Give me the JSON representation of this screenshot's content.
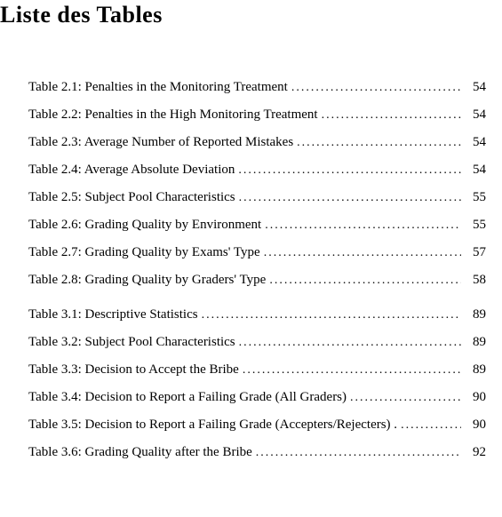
{
  "heading": "Liste des Tables",
  "entries": [
    {
      "num": "2.1",
      "title": "Penalties in the Monitoring Treatment",
      "page": "54",
      "group_gap": false
    },
    {
      "num": "2.2",
      "title": "Penalties in the High Monitoring Treatment",
      "page": "54",
      "group_gap": false
    },
    {
      "num": "2.3",
      "title": "Average Number of Reported Mistakes",
      "page": "54",
      "group_gap": false
    },
    {
      "num": "2.4",
      "title": "Average Absolute Deviation",
      "page": "54",
      "group_gap": false
    },
    {
      "num": "2.5",
      "title": "Subject Pool Characteristics",
      "page": "55",
      "group_gap": false
    },
    {
      "num": "2.6",
      "title": "Grading Quality by Environment",
      "page": "55",
      "group_gap": false
    },
    {
      "num": "2.7",
      "title": "Grading Quality by Exams' Type",
      "page": "57",
      "group_gap": false
    },
    {
      "num": "2.8",
      "title": "Grading Quality by Graders' Type",
      "page": "58",
      "group_gap": false
    },
    {
      "num": "3.1",
      "title": "Descriptive Statistics",
      "page": "89",
      "group_gap": true
    },
    {
      "num": "3.2",
      "title": "Subject Pool Characteristics",
      "page": "89",
      "group_gap": false
    },
    {
      "num": "3.3",
      "title": "Decision to Accept the Bribe",
      "page": "89",
      "group_gap": false
    },
    {
      "num": "3.4",
      "title": "Decision to Report a Failing Grade (All Graders)",
      "page": "90",
      "group_gap": false
    },
    {
      "num": "3.5",
      "title": "Decision to Report a Failing Grade (Accepters/Rejecters) .",
      "page": "90",
      "group_gap": false,
      "no_dots": true
    },
    {
      "num": "3.6",
      "title": "Grading Quality after the Bribe",
      "page": "92",
      "group_gap": false
    }
  ],
  "table_prefix": "Table",
  "colors": {
    "background": "#ffffff",
    "text": "#000000"
  },
  "typography": {
    "title_fontsize": 26,
    "entry_fontsize": 15,
    "font_family": "Times New Roman"
  }
}
